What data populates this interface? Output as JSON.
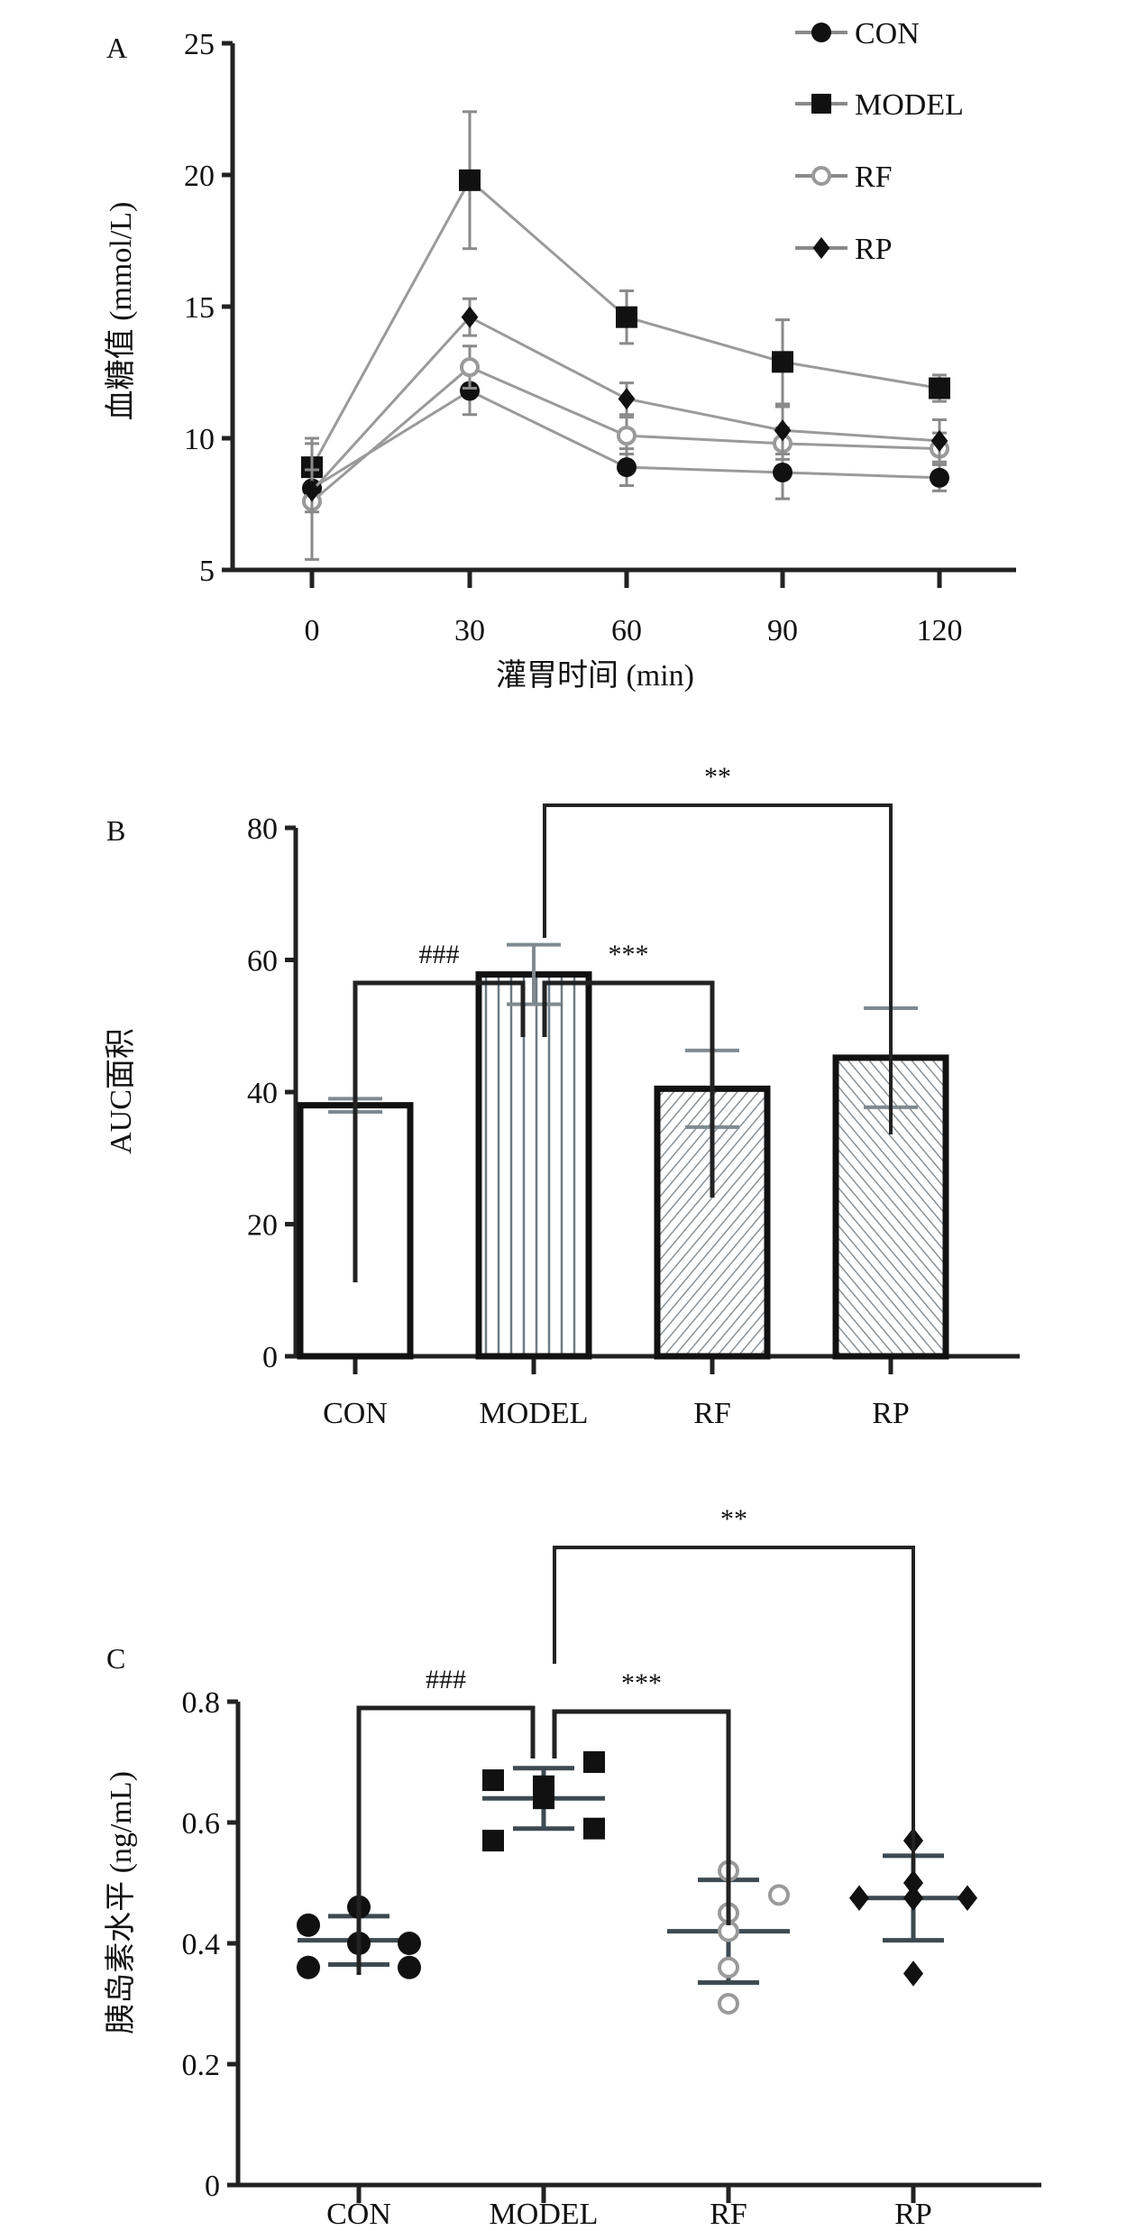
{
  "chart_data": [
    {
      "type": "line",
      "panel_label": "A",
      "xlabel": "灌胃时间 (min)",
      "ylabel": "血糖值 (mmol/L)",
      "x": [
        0,
        30,
        60,
        90,
        120
      ],
      "x_ticks": [
        "0",
        "30",
        "60",
        "90",
        "120"
      ],
      "ylim": [
        5,
        25
      ],
      "y_ticks": [
        "5",
        "10",
        "15",
        "20",
        "25"
      ],
      "legend_position": "top-right",
      "series": [
        {
          "name": "CON",
          "marker": "filled-circle",
          "color": "#7a7a7a",
          "values": [
            8.1,
            11.8,
            8.9,
            8.7,
            8.5
          ],
          "errors": [
            0.6,
            0.9,
            0.7,
            1.0,
            0.5
          ]
        },
        {
          "name": "MODEL",
          "marker": "filled-square",
          "color": "#8a8a8a",
          "values": [
            8.9,
            19.8,
            14.6,
            12.9,
            11.9
          ],
          "errors": [
            1.1,
            2.6,
            1.0,
            1.6,
            0.5
          ]
        },
        {
          "name": "RF",
          "marker": "open-circle",
          "color": "#9a9a9a",
          "values": [
            7.6,
            12.7,
            10.1,
            9.8,
            9.6
          ],
          "errors": [
            2.2,
            0.8,
            0.7,
            0.6,
            0.6
          ]
        },
        {
          "name": "RP",
          "marker": "filled-diamond",
          "color": "#7a7a7a",
          "values": [
            8.0,
            14.6,
            11.5,
            10.3,
            9.9
          ],
          "errors": [
            0.8,
            0.7,
            0.6,
            0.9,
            0.8
          ]
        }
      ]
    },
    {
      "type": "bar",
      "panel_label": "B",
      "xlabel": "",
      "ylabel": "AUC面积",
      "categories": [
        "CON",
        "MODEL",
        "RF",
        "RP"
      ],
      "values": [
        38.0,
        57.8,
        40.5,
        45.2
      ],
      "errors": [
        1.0,
        4.5,
        5.8,
        7.5
      ],
      "patterns": [
        "none",
        "vertical",
        "diagonal-right",
        "diagonal-left"
      ],
      "ylim": [
        0,
        80
      ],
      "y_ticks": [
        "0",
        "20",
        "40",
        "60",
        "80"
      ],
      "annotations": [
        {
          "from": "CON",
          "to": "MODEL",
          "label": "###"
        },
        {
          "from": "MODEL",
          "to": "RF",
          "label": "***"
        },
        {
          "from": "MODEL",
          "to": "RP",
          "label": "**"
        }
      ]
    },
    {
      "type": "scatter",
      "panel_label": "C",
      "xlabel": "",
      "ylabel": "胰岛素水平 (ng/mL)",
      "categories": [
        "CON",
        "MODEL",
        "RF",
        "RP"
      ],
      "ylim": [
        0,
        0.8
      ],
      "y_ticks": [
        "0",
        "0.2",
        "0.4",
        "0.6",
        "0.8"
      ],
      "groups": [
        {
          "name": "CON",
          "marker": "filled-circle",
          "points": [
            0.43,
            0.46,
            0.4,
            0.4,
            0.36,
            0.36
          ],
          "mean": 0.405,
          "sd": 0.04
        },
        {
          "name": "MODEL",
          "marker": "filled-square",
          "points": [
            0.67,
            0.66,
            0.64,
            0.7,
            0.57,
            0.59
          ],
          "mean": 0.64,
          "sd": 0.05
        },
        {
          "name": "RF",
          "marker": "open-circle",
          "points": [
            0.52,
            0.48,
            0.45,
            0.42,
            0.36,
            0.3
          ],
          "mean": 0.42,
          "sd": 0.085
        },
        {
          "name": "RP",
          "marker": "filled-diamond",
          "points": [
            0.57,
            0.5,
            0.475,
            0.475,
            0.475,
            0.35
          ],
          "mean": 0.475,
          "sd": 0.07
        }
      ],
      "annotations": [
        {
          "from": "CON",
          "to": "MODEL",
          "label": "###"
        },
        {
          "from": "MODEL",
          "to": "RF",
          "label": "***"
        },
        {
          "from": "MODEL",
          "to": "RP",
          "label": "**"
        }
      ]
    }
  ]
}
